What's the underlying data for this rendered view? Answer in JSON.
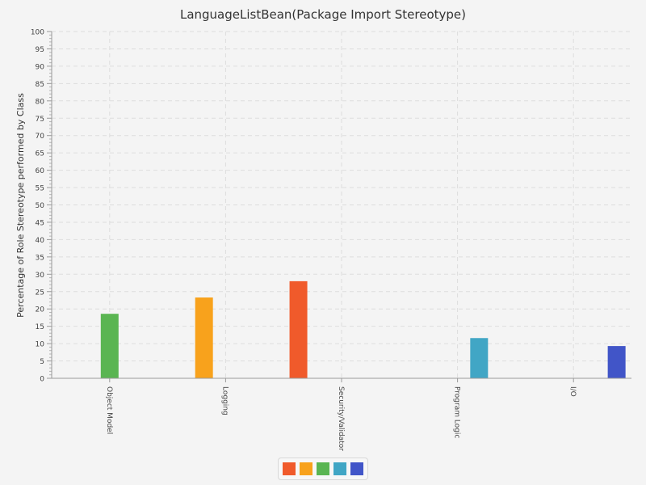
{
  "chart_data": {
    "type": "bar",
    "title": "LanguageListBean(Package Import Stereotype)",
    "xlabel": "",
    "ylabel": "Percentage of Role Stereotype performed by Class",
    "ylim": [
      0,
      100
    ],
    "y_major_step": 5,
    "y_minor_step": 1,
    "grid": true,
    "legend": "bottom-center",
    "categories": [
      "Object Model",
      "Logging",
      "Security/Validator",
      "Program Logic",
      "I/O"
    ],
    "series": [
      {
        "values": [
          0,
          0,
          28.0,
          0,
          0
        ],
        "color": "#f05a2b"
      },
      {
        "values": [
          0,
          23.3,
          0,
          0,
          0
        ],
        "color": "#f8a21c"
      },
      {
        "values": [
          18.6,
          0,
          0,
          0,
          0
        ],
        "color": "#5ab552"
      },
      {
        "values": [
          0,
          0,
          0,
          11.6,
          0
        ],
        "color": "#41a6c5"
      },
      {
        "values": [
          0,
          0,
          0,
          0,
          9.3
        ],
        "color": "#4155c8"
      }
    ]
  }
}
